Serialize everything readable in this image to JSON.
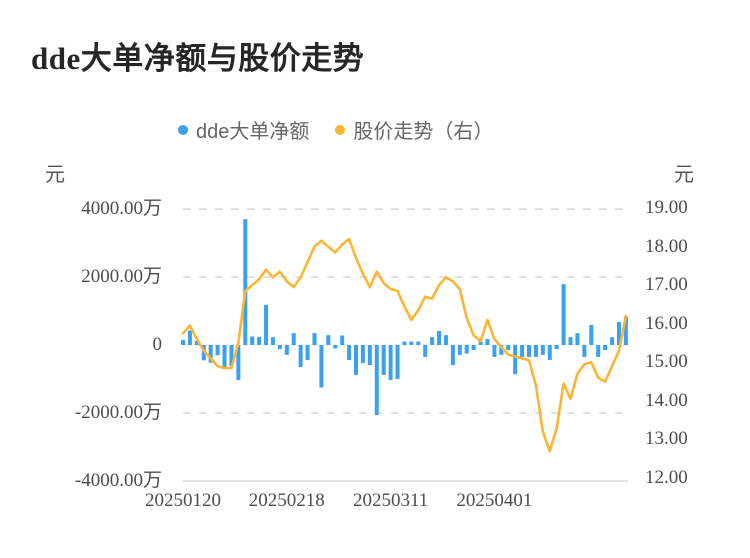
{
  "title": "dde大单净额与股价走势",
  "legend": [
    {
      "label": "dde大单净额",
      "color": "#3CA0F0"
    },
    {
      "label": "股价走势（右）",
      "color": "#FBB535"
    }
  ],
  "axes": {
    "left_unit": "元",
    "right_unit": "元",
    "left_ticks": [
      {
        "label": "4000.00万",
        "value": 4000
      },
      {
        "label": "2000.00万",
        "value": 2000
      },
      {
        "label": "0",
        "value": 0
      },
      {
        "label": "-2000.00万",
        "value": -2000
      },
      {
        "label": "-4000.00万",
        "value": -4000
      }
    ],
    "right_ticks": [
      {
        "label": "19.00",
        "value": 19
      },
      {
        "label": "18.00",
        "value": 18
      },
      {
        "label": "17.00",
        "value": 17
      },
      {
        "label": "16.00",
        "value": 16
      },
      {
        "label": "15.00",
        "value": 15
      },
      {
        "label": "14.00",
        "value": 14
      },
      {
        "label": "13.00",
        "value": 13
      },
      {
        "label": "12.00",
        "value": 12
      }
    ],
    "x_ticks": [
      {
        "label": "20250120",
        "index": 0
      },
      {
        "label": "20250218",
        "index": 15
      },
      {
        "label": "20250311",
        "index": 30
      },
      {
        "label": "20250401",
        "index": 45
      }
    ]
  },
  "chart_data": {
    "type": "combo-bar-line",
    "x": [
      "20250120",
      "20250121",
      "20250122",
      "20250123",
      "20250124",
      "20250127",
      "20250205",
      "20250206",
      "20250207",
      "20250210",
      "20250211",
      "20250212",
      "20250213",
      "20250214",
      "20250217",
      "20250218",
      "20250219",
      "20250220",
      "20250221",
      "20250224",
      "20250225",
      "20250226",
      "20250227",
      "20250228",
      "20250303",
      "20250304",
      "20250305",
      "20250306",
      "20250307",
      "20250310",
      "20250311",
      "20250312",
      "20250313",
      "20250314",
      "20250317",
      "20250318",
      "20250319",
      "20250320",
      "20250321",
      "20250324",
      "20250325",
      "20250326",
      "20250327",
      "20250328",
      "20250331",
      "20250401",
      "20250402",
      "20250403",
      "20250407",
      "20250408",
      "20250409",
      "20250410",
      "20250411",
      "20250414",
      "20250415",
      "20250416",
      "20250417",
      "20250418",
      "20250421",
      "20250422",
      "20250423",
      "20250424",
      "20250425",
      "20250428",
      "20250429"
    ],
    "series": [
      {
        "name": "dde大单净额",
        "type": "bar",
        "axis": "left",
        "unit": "万元",
        "color": "#3CA0F0",
        "values": [
          150,
          430,
          120,
          -450,
          -520,
          -300,
          -700,
          -620,
          -1030,
          3700,
          250,
          240,
          1180,
          230,
          -120,
          -290,
          350,
          -650,
          -440,
          350,
          -1250,
          290,
          -100,
          280,
          -440,
          -880,
          -530,
          -590,
          -2060,
          -880,
          -1030,
          -1000,
          100,
          100,
          100,
          -350,
          230,
          410,
          290,
          -590,
          -290,
          -250,
          -150,
          100,
          180,
          -350,
          -290,
          -150,
          -860,
          -350,
          -350,
          -350,
          -290,
          -440,
          -120,
          1790,
          230,
          350,
          -350,
          590,
          -350,
          -150,
          230,
          680,
          830
        ]
      },
      {
        "name": "股价走势（右）",
        "type": "line",
        "axis": "right",
        "unit": "元",
        "color": "#FBB535",
        "values": [
          15.75,
          15.95,
          15.6,
          15.3,
          15.1,
          14.9,
          14.85,
          14.85,
          15.5,
          16.85,
          17.0,
          17.15,
          17.4,
          17.2,
          17.35,
          17.1,
          16.95,
          17.2,
          17.6,
          18.0,
          18.15,
          18.0,
          17.85,
          18.05,
          18.2,
          17.7,
          17.3,
          16.95,
          17.35,
          17.05,
          16.9,
          16.85,
          16.45,
          16.1,
          16.35,
          16.7,
          16.65,
          17.0,
          17.2,
          17.1,
          16.9,
          16.15,
          15.7,
          15.55,
          16.1,
          15.6,
          15.4,
          15.2,
          15.15,
          15.1,
          15.05,
          14.4,
          13.2,
          12.7,
          13.3,
          14.45,
          14.05,
          14.7,
          14.95,
          15.0,
          14.6,
          14.5,
          14.9,
          15.3,
          16.2
        ]
      }
    ],
    "left_ylim": [
      -4000,
      4000
    ],
    "right_ylim": [
      12,
      19
    ],
    "grid": "dashed-horizontal",
    "legend_position": "top-center"
  },
  "colors": {
    "bar": "#3CA0F0",
    "line": "#FBB535",
    "grid": "#E2E2E2",
    "zero_line": "#EBEBEB",
    "axis_line": "#E3E3E3",
    "tick_text": "#4D4D4D",
    "legend_text": "#666666",
    "title_text": "#262626"
  }
}
